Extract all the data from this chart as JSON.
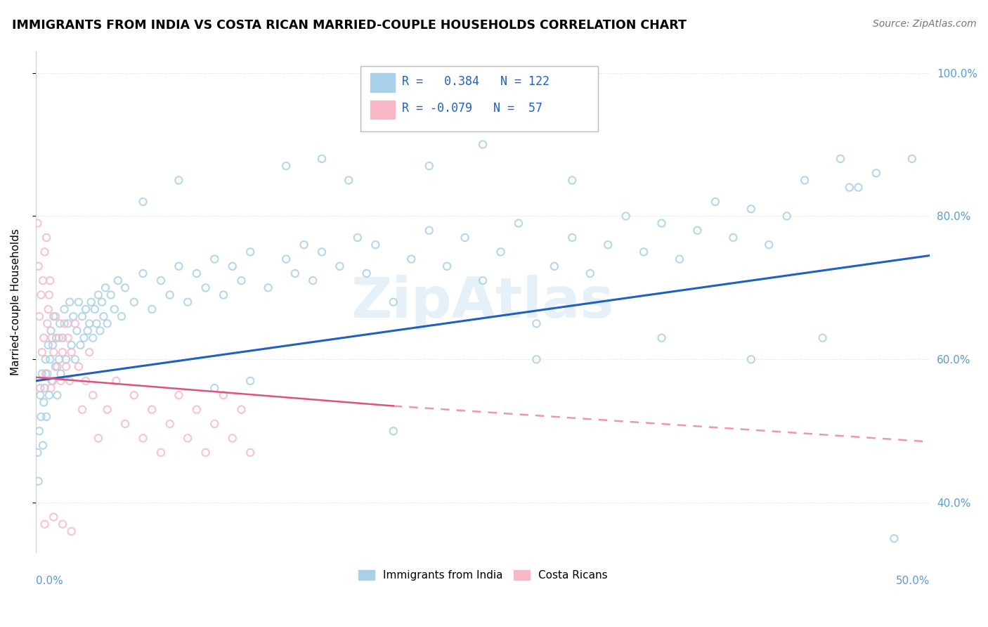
{
  "title": "IMMIGRANTS FROM INDIA VS COSTA RICAN MARRIED-COUPLE HOUSEHOLDS CORRELATION CHART",
  "source": "Source: ZipAtlas.com",
  "ylabel": "Married-couple Households",
  "xmin": 0.0,
  "xmax": 50.0,
  "ymin": 33.0,
  "ymax": 103.0,
  "R_blue": 0.384,
  "N_blue": 122,
  "R_pink": -0.079,
  "N_pink": 57,
  "blue_color": "#a8d0e8",
  "pink_color": "#f9b8c8",
  "blue_line_color": "#2060c0",
  "pink_line_color": "#e05080",
  "legend_blue_label": "Immigrants from India",
  "legend_pink_label": "Costa Ricans",
  "blue_trend": [
    0.0,
    57.0,
    50.0,
    74.5
  ],
  "pink_trend": [
    0.0,
    57.5,
    20.0,
    53.5
  ],
  "pink_trend_ext": [
    20.0,
    53.5,
    50.0,
    48.5
  ],
  "blue_scatter": [
    [
      0.1,
      47
    ],
    [
      0.15,
      43
    ],
    [
      0.2,
      50
    ],
    [
      0.25,
      55
    ],
    [
      0.3,
      52
    ],
    [
      0.35,
      58
    ],
    [
      0.4,
      48
    ],
    [
      0.45,
      54
    ],
    [
      0.5,
      56
    ],
    [
      0.55,
      60
    ],
    [
      0.6,
      52
    ],
    [
      0.65,
      58
    ],
    [
      0.7,
      62
    ],
    [
      0.75,
      55
    ],
    [
      0.8,
      60
    ],
    [
      0.85,
      64
    ],
    [
      0.9,
      57
    ],
    [
      0.95,
      62
    ],
    [
      1.0,
      66
    ],
    [
      1.1,
      59
    ],
    [
      1.15,
      63
    ],
    [
      1.2,
      55
    ],
    [
      1.3,
      60
    ],
    [
      1.35,
      65
    ],
    [
      1.4,
      58
    ],
    [
      1.5,
      63
    ],
    [
      1.6,
      67
    ],
    [
      1.7,
      60
    ],
    [
      1.8,
      65
    ],
    [
      1.9,
      68
    ],
    [
      2.0,
      62
    ],
    [
      2.1,
      66
    ],
    [
      2.2,
      60
    ],
    [
      2.3,
      64
    ],
    [
      2.4,
      68
    ],
    [
      2.5,
      62
    ],
    [
      2.6,
      66
    ],
    [
      2.7,
      63
    ],
    [
      2.8,
      67
    ],
    [
      2.9,
      64
    ],
    [
      3.0,
      65
    ],
    [
      3.1,
      68
    ],
    [
      3.2,
      63
    ],
    [
      3.3,
      67
    ],
    [
      3.4,
      65
    ],
    [
      3.5,
      69
    ],
    [
      3.6,
      64
    ],
    [
      3.7,
      68
    ],
    [
      3.8,
      66
    ],
    [
      3.9,
      70
    ],
    [
      4.0,
      65
    ],
    [
      4.2,
      69
    ],
    [
      4.4,
      67
    ],
    [
      4.6,
      71
    ],
    [
      4.8,
      66
    ],
    [
      5.0,
      70
    ],
    [
      5.5,
      68
    ],
    [
      6.0,
      72
    ],
    [
      6.5,
      67
    ],
    [
      7.0,
      71
    ],
    [
      7.5,
      69
    ],
    [
      8.0,
      73
    ],
    [
      8.5,
      68
    ],
    [
      9.0,
      72
    ],
    [
      9.5,
      70
    ],
    [
      10.0,
      74
    ],
    [
      10.5,
      69
    ],
    [
      11.0,
      73
    ],
    [
      11.5,
      71
    ],
    [
      12.0,
      75
    ],
    [
      13.0,
      70
    ],
    [
      14.0,
      74
    ],
    [
      14.5,
      72
    ],
    [
      15.0,
      76
    ],
    [
      15.5,
      71
    ],
    [
      16.0,
      75
    ],
    [
      17.0,
      73
    ],
    [
      18.0,
      77
    ],
    [
      18.5,
      72
    ],
    [
      19.0,
      76
    ],
    [
      20.0,
      68
    ],
    [
      21.0,
      74
    ],
    [
      22.0,
      78
    ],
    [
      23.0,
      73
    ],
    [
      24.0,
      77
    ],
    [
      25.0,
      71
    ],
    [
      26.0,
      75
    ],
    [
      27.0,
      79
    ],
    [
      28.0,
      65
    ],
    [
      29.0,
      73
    ],
    [
      30.0,
      77
    ],
    [
      31.0,
      72
    ],
    [
      32.0,
      76
    ],
    [
      33.0,
      80
    ],
    [
      34.0,
      75
    ],
    [
      35.0,
      79
    ],
    [
      36.0,
      74
    ],
    [
      37.0,
      78
    ],
    [
      38.0,
      82
    ],
    [
      39.0,
      77
    ],
    [
      40.0,
      81
    ],
    [
      41.0,
      76
    ],
    [
      42.0,
      80
    ],
    [
      43.0,
      85
    ],
    [
      44.0,
      63
    ],
    [
      45.0,
      88
    ],
    [
      46.0,
      84
    ],
    [
      47.0,
      86
    ],
    [
      48.0,
      35
    ],
    [
      49.0,
      88
    ],
    [
      6.0,
      82
    ],
    [
      8.0,
      85
    ],
    [
      10.0,
      56
    ],
    [
      12.0,
      57
    ],
    [
      14.0,
      87
    ],
    [
      17.5,
      85
    ],
    [
      20.0,
      50
    ],
    [
      25.0,
      90
    ],
    [
      28.0,
      60
    ],
    [
      30.0,
      85
    ],
    [
      35.0,
      63
    ],
    [
      40.0,
      60
    ],
    [
      45.5,
      84
    ],
    [
      22.0,
      87
    ],
    [
      16.0,
      88
    ]
  ],
  "pink_scatter": [
    [
      0.1,
      79
    ],
    [
      0.15,
      73
    ],
    [
      0.2,
      66
    ],
    [
      0.25,
      56
    ],
    [
      0.3,
      69
    ],
    [
      0.35,
      61
    ],
    [
      0.4,
      71
    ],
    [
      0.45,
      63
    ],
    [
      0.5,
      75
    ],
    [
      0.55,
      58
    ],
    [
      0.6,
      77
    ],
    [
      0.65,
      65
    ],
    [
      0.7,
      67
    ],
    [
      0.75,
      69
    ],
    [
      0.8,
      71
    ],
    [
      0.85,
      56
    ],
    [
      0.9,
      63
    ],
    [
      0.95,
      57
    ],
    [
      1.0,
      61
    ],
    [
      1.1,
      66
    ],
    [
      1.2,
      59
    ],
    [
      1.3,
      63
    ],
    [
      1.4,
      57
    ],
    [
      1.5,
      61
    ],
    [
      1.6,
      65
    ],
    [
      1.7,
      59
    ],
    [
      1.8,
      63
    ],
    [
      1.9,
      57
    ],
    [
      2.0,
      61
    ],
    [
      2.2,
      65
    ],
    [
      2.4,
      59
    ],
    [
      2.6,
      53
    ],
    [
      2.8,
      57
    ],
    [
      3.0,
      61
    ],
    [
      3.2,
      55
    ],
    [
      3.5,
      49
    ],
    [
      4.0,
      53
    ],
    [
      4.5,
      57
    ],
    [
      5.0,
      51
    ],
    [
      5.5,
      55
    ],
    [
      6.0,
      49
    ],
    [
      6.5,
      53
    ],
    [
      7.0,
      47
    ],
    [
      7.5,
      51
    ],
    [
      8.0,
      55
    ],
    [
      8.5,
      49
    ],
    [
      9.0,
      53
    ],
    [
      9.5,
      47
    ],
    [
      10.0,
      51
    ],
    [
      10.5,
      55
    ],
    [
      11.0,
      49
    ],
    [
      11.5,
      53
    ],
    [
      12.0,
      47
    ],
    [
      0.5,
      37
    ],
    [
      1.0,
      38
    ],
    [
      2.0,
      36
    ],
    [
      1.5,
      37
    ]
  ]
}
